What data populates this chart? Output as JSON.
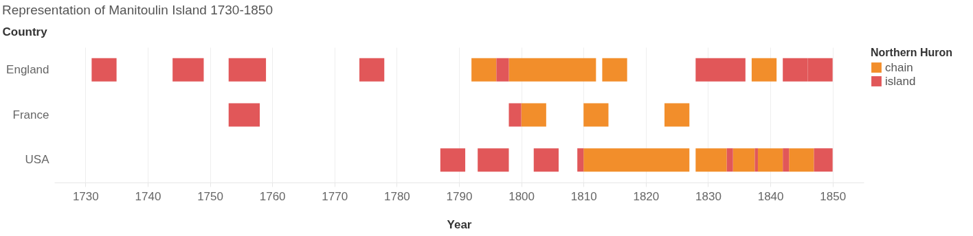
{
  "chart_data": {
    "type": "bar",
    "orientation": "horizontal",
    "title": "Representation of Manitoulin Island 1730-1850",
    "xlabel": "Year",
    "ylabel": "Country",
    "legend_title": "Northern Huron",
    "legend": "right",
    "grid": "x",
    "categories": [
      "England",
      "France",
      "USA"
    ],
    "xlim": [
      1725,
      1855
    ],
    "xticks": [
      1730,
      1740,
      1750,
      1760,
      1770,
      1780,
      1790,
      1800,
      1810,
      1820,
      1830,
      1840,
      1850
    ],
    "series": [
      {
        "name": "chain",
        "color": "#f28e2b",
        "base": [
          1792,
          1800,
          1810
        ],
        "values": [
          4,
          4,
          17
        ]
      },
      {
        "color": "#f28e2b",
        "base": [
          1798,
          1810,
          1828
        ],
        "values": [
          14,
          4,
          5
        ]
      },
      {
        "color": "#f28e2b",
        "base": [
          1813,
          1823,
          1834
        ],
        "values": [
          4,
          4,
          3.5
        ]
      },
      {
        "color": "#f28e2b",
        "base": [
          1837,
          null,
          1838
        ],
        "values": [
          4,
          null,
          4
        ]
      },
      {
        "color": "#f28e2b",
        "base": [
          null,
          null,
          1843
        ],
        "values": [
          null,
          null,
          4
        ]
      },
      {
        "name": "island",
        "color": "#e15759",
        "base": [
          1731,
          1753,
          1787
        ],
        "values": [
          4,
          5,
          4
        ]
      },
      {
        "color": "#e15759",
        "base": [
          1744,
          1798,
          1793
        ],
        "values": [
          5,
          2,
          5
        ]
      },
      {
        "color": "#e15759",
        "base": [
          1753,
          null,
          1802
        ],
        "values": [
          6,
          null,
          4
        ]
      },
      {
        "color": "#e15759",
        "base": [
          1774,
          null,
          1809
        ],
        "values": [
          4,
          null,
          1
        ]
      },
      {
        "color": "#e15759",
        "base": [
          1796,
          null,
          1833
        ],
        "values": [
          2,
          null,
          1
        ]
      },
      {
        "color": "#e15759",
        "base": [
          1828,
          null,
          1837.5
        ],
        "values": [
          8,
          null,
          0.5
        ]
      },
      {
        "color": "#e15759",
        "base": [
          1842,
          null,
          1842
        ],
        "values": [
          4,
          null,
          1
        ]
      },
      {
        "color": "#e15759",
        "base": [
          1846,
          null,
          1847
        ],
        "values": [
          4,
          null,
          3
        ]
      }
    ]
  }
}
